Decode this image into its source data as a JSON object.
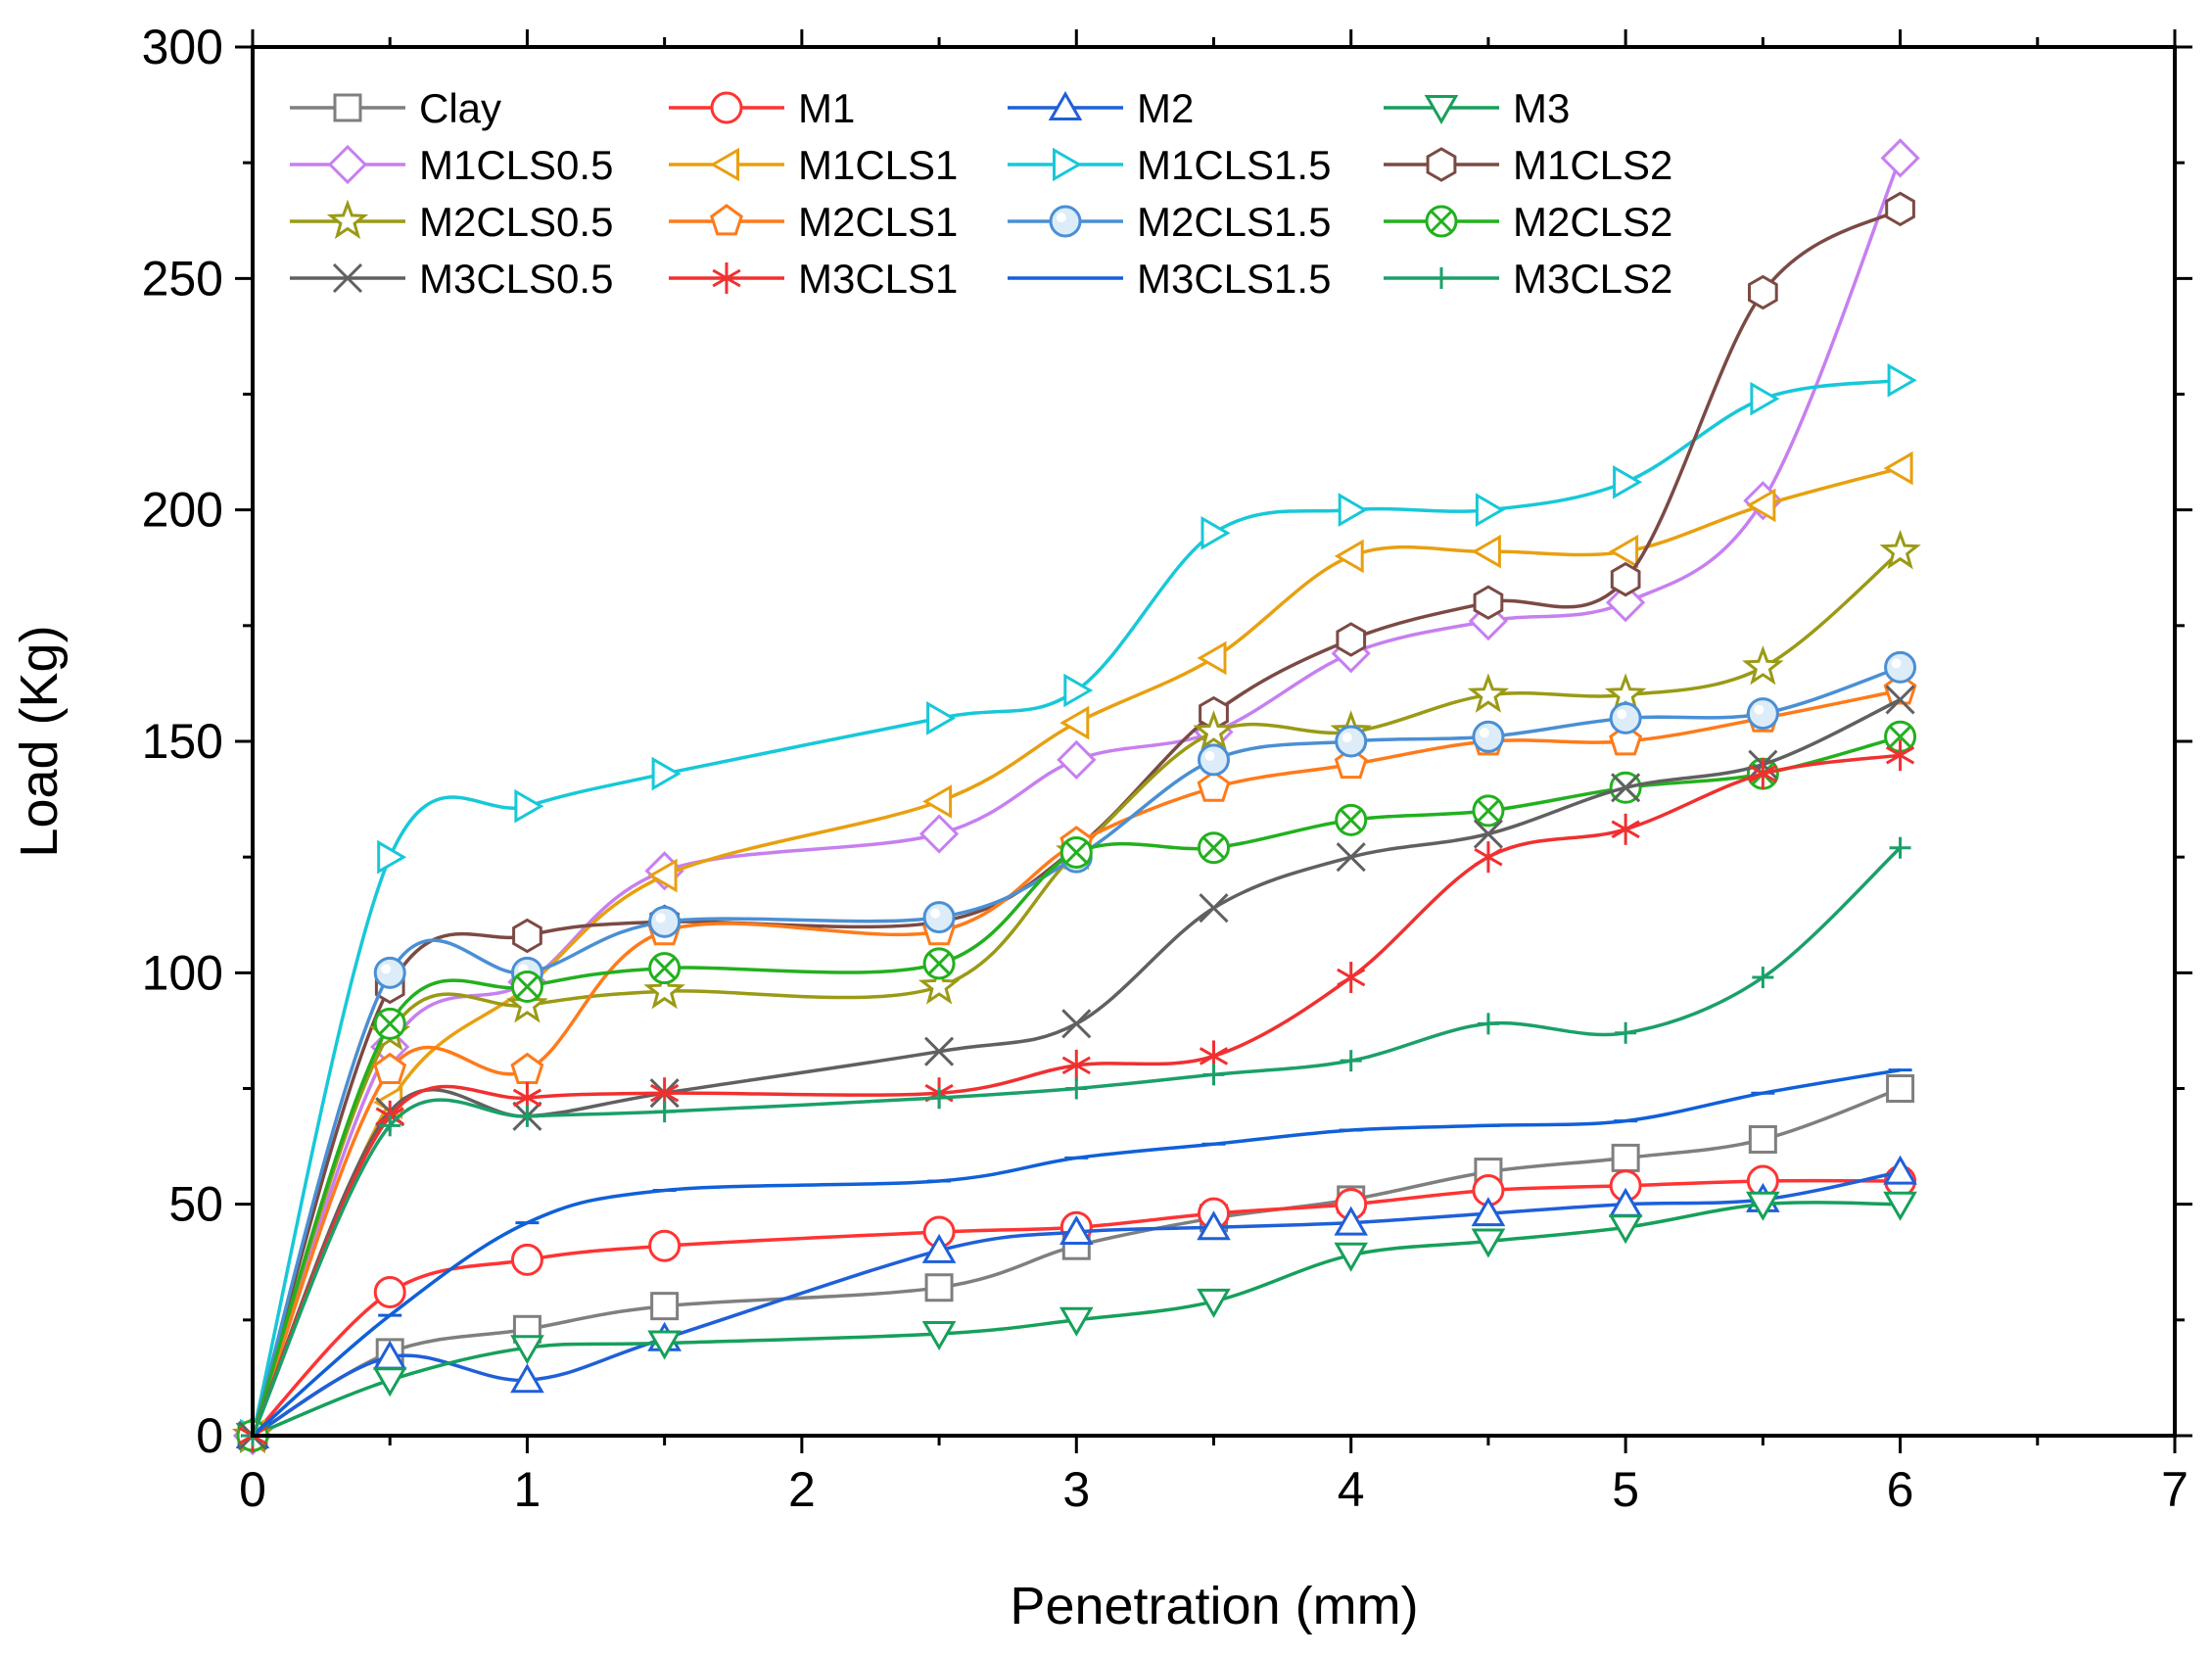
{
  "chart_data": {
    "type": "line",
    "title": "",
    "xlabel": "Penetration (mm)",
    "ylabel": "Load (Kg)",
    "xlim": [
      0,
      7
    ],
    "ylim": [
      0,
      300
    ],
    "xticks": [
      "0",
      "1",
      "2",
      "3",
      "4",
      "5",
      "6",
      "7"
    ],
    "yticks": [
      "0",
      "50",
      "100",
      "150",
      "200",
      "250",
      "300"
    ],
    "legend_position": "top-left",
    "legend_columns": 4,
    "x": [
      0,
      0.5,
      1,
      1.5,
      2.5,
      3,
      3.5,
      4,
      4.5,
      5,
      5.5,
      6
    ],
    "series": [
      {
        "name": "Clay",
        "color": "#7f7f7f",
        "marker": "square",
        "values": [
          0,
          18,
          23,
          28,
          32,
          41,
          47,
          51,
          57,
          60,
          64,
          75
        ]
      },
      {
        "name": "M1",
        "color": "#ff3333",
        "marker": "circle",
        "values": [
          0,
          31,
          38,
          41,
          44,
          45,
          48,
          50,
          53,
          54,
          55,
          55
        ]
      },
      {
        "name": "M2",
        "color": "#1f5fd9",
        "marker": "triangle-up",
        "values": [
          0,
          17,
          12,
          21,
          40,
          44,
          45,
          46,
          48,
          50,
          51,
          57
        ]
      },
      {
        "name": "M3",
        "color": "#16a05a",
        "marker": "triangle-down",
        "values": [
          0,
          12,
          19,
          20,
          22,
          25,
          29,
          39,
          42,
          45,
          50,
          50
        ]
      },
      {
        "name": "M1CLS0.5",
        "color": "#c77ff0",
        "marker": "diamond",
        "values": [
          0,
          84,
          98,
          122,
          130,
          146,
          152,
          169,
          176,
          180,
          202,
          276
        ]
      },
      {
        "name": "M1CLS1",
        "color": "#e8a010",
        "marker": "triangle-left",
        "values": [
          0,
          72,
          97,
          121,
          137,
          154,
          168,
          190,
          191,
          191,
          201,
          209
        ]
      },
      {
        "name": "M1CLS1.5",
        "color": "#17c8d8",
        "marker": "triangle-right",
        "values": [
          0,
          125,
          136,
          143,
          155,
          161,
          195,
          200,
          200,
          206,
          224,
          228
        ]
      },
      {
        "name": "M1CLS2",
        "color": "#7b4a44",
        "marker": "hexagon",
        "values": [
          0,
          97,
          108,
          111,
          111,
          127,
          156,
          172,
          180,
          185,
          247,
          265
        ]
      },
      {
        "name": "M2CLS0.5",
        "color": "#9a9a16",
        "marker": "star",
        "values": [
          0,
          87,
          93,
          96,
          97,
          126,
          152,
          152,
          160,
          160,
          166,
          191
        ]
      },
      {
        "name": "M2CLS1",
        "color": "#ff7a1a",
        "marker": "pentagon",
        "values": [
          0,
          79,
          79,
          109,
          109,
          128,
          140,
          145,
          150,
          150,
          155,
          161
        ]
      },
      {
        "name": "M2CLS1.5",
        "color": "#4a8fd4",
        "marker": "sphere",
        "values": [
          0,
          100,
          100,
          111,
          112,
          125,
          146,
          150,
          151,
          155,
          156,
          166
        ]
      },
      {
        "name": "M2CLS2",
        "color": "#22b01e",
        "marker": "circle-x",
        "values": [
          0,
          89,
          97,
          101,
          102,
          126,
          127,
          133,
          135,
          140,
          143,
          151
        ]
      },
      {
        "name": "M3CLS0.5",
        "color": "#606060",
        "marker": "x",
        "values": [
          0,
          70,
          69,
          74,
          83,
          89,
          114,
          125,
          130,
          140,
          145,
          159
        ]
      },
      {
        "name": "M3CLS1",
        "color": "#f03030",
        "marker": "asterisk",
        "values": [
          0,
          69,
          73,
          74,
          74,
          80,
          82,
          99,
          125,
          131,
          143,
          147
        ]
      },
      {
        "name": "M3CLS1.5",
        "color": "#1060d8",
        "marker": "dash",
        "values": [
          0,
          26,
          46,
          53,
          55,
          60,
          63,
          66,
          67,
          68,
          74,
          79
        ]
      },
      {
        "name": "M3CLS2",
        "color": "#1aa069",
        "marker": "plus",
        "values": [
          0,
          67,
          69,
          70,
          73,
          75,
          78,
          81,
          89,
          87,
          99,
          127
        ]
      }
    ]
  }
}
